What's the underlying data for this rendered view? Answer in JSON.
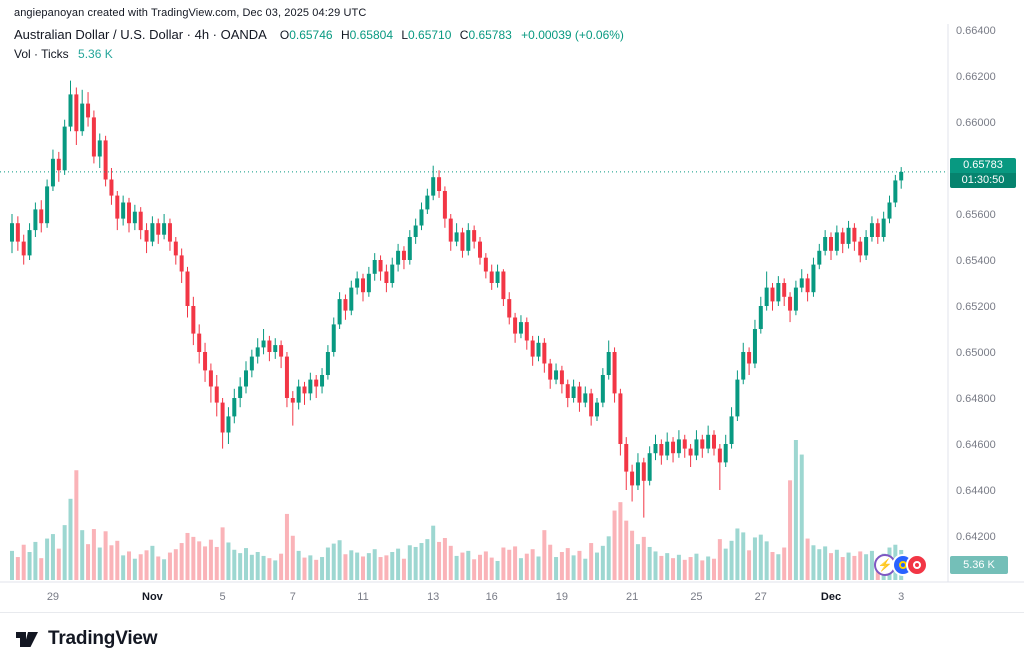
{
  "attribution": "angiepanoyan created with TradingView.com, Dec 03, 2025 04:29 UTC",
  "legend": {
    "title": "Australian Dollar / U.S. Dollar · 4h · OANDA",
    "ohlc": {
      "o_label": "O",
      "o": "0.65746",
      "h_label": "H",
      "h": "0.65804",
      "l_label": "L",
      "l": "0.65710",
      "c_label": "C",
      "c": "0.65783",
      "change": "+0.00039 (+0.06%)"
    },
    "volume_label": "Vol · Ticks",
    "volume_value": "5.36 K"
  },
  "price_axis": {
    "current_price": "0.65783",
    "countdown": "01:30:50"
  },
  "volume_axis": {
    "last_label": "5.36 K"
  },
  "footer": {
    "brand": "TradingView"
  },
  "icons": [
    "lightning-icon",
    "event-marker-blue-icon",
    "event-marker-red-icon"
  ],
  "colors": {
    "up": "#089981",
    "down": "#f23645",
    "vol_up": "rgba(38,166,154,0.45)",
    "vol_down": "rgba(242,54,69,0.38)",
    "axis_text": "#787b86",
    "month_text": "#131722",
    "separator": "#e0e3eb",
    "last_price_line": "#089981",
    "badge_price_bg": "#089981",
    "badge_vol_bg": "#74bfb8"
  },
  "chart_data": {
    "type": "candlestick+volume",
    "title": "Australian Dollar / U.S. Dollar",
    "timeframe": "4h",
    "exchange": "OANDA",
    "volume_units": "K ticks",
    "ylim": [
      0.642,
      0.664
    ],
    "grid": false,
    "last_price": 0.65783,
    "last_volume": 5.36,
    "y_ticks": [
      0.664,
      0.662,
      0.66,
      0.658,
      0.656,
      0.654,
      0.652,
      0.65,
      0.648,
      0.646,
      0.644,
      0.642
    ],
    "x_labels": [
      {
        "t": "29",
        "i": 7,
        "b": false
      },
      {
        "t": "Nov",
        "i": 24,
        "b": true
      },
      {
        "t": "5",
        "i": 36,
        "b": false
      },
      {
        "t": "7",
        "i": 48,
        "b": false
      },
      {
        "t": "11",
        "i": 60,
        "b": false
      },
      {
        "t": "13",
        "i": 72,
        "b": false
      },
      {
        "t": "16",
        "i": 82,
        "b": false
      },
      {
        "t": "19",
        "i": 94,
        "b": false
      },
      {
        "t": "21",
        "i": 106,
        "b": false
      },
      {
        "t": "25",
        "i": 117,
        "b": false
      },
      {
        "t": "27",
        "i": 128,
        "b": false
      },
      {
        "t": "Dec",
        "i": 140,
        "b": true
      },
      {
        "t": "3",
        "i": 152,
        "b": false
      }
    ],
    "candles": [
      [
        0.6548,
        0.656,
        0.6543,
        0.6556,
        5.2
      ],
      [
        0.6556,
        0.6559,
        0.6544,
        0.6548,
        4.1
      ],
      [
        0.6548,
        0.6551,
        0.6538,
        0.6542,
        6.3
      ],
      [
        0.6542,
        0.6556,
        0.654,
        0.6553,
        5
      ],
      [
        0.6553,
        0.6565,
        0.655,
        0.6562,
        6.8
      ],
      [
        0.6562,
        0.6566,
        0.6552,
        0.6556,
        3.9
      ],
      [
        0.6556,
        0.6575,
        0.6554,
        0.6572,
        7.4
      ],
      [
        0.6572,
        0.6588,
        0.657,
        0.6584,
        8.2
      ],
      [
        0.6584,
        0.6587,
        0.6574,
        0.6579,
        5.6
      ],
      [
        0.6579,
        0.6601,
        0.6577,
        0.6598,
        9.8
      ],
      [
        0.6598,
        0.6618,
        0.6596,
        0.6612,
        14.5
      ],
      [
        0.6612,
        0.6615,
        0.659,
        0.6596,
        19.6
      ],
      [
        0.6596,
        0.6614,
        0.6594,
        0.6608,
        8.9
      ],
      [
        0.6608,
        0.6613,
        0.6598,
        0.6602,
        6.4
      ],
      [
        0.6602,
        0.6605,
        0.6582,
        0.6585,
        9.1
      ],
      [
        0.6585,
        0.6595,
        0.658,
        0.6592,
        5.8
      ],
      [
        0.6592,
        0.6594,
        0.6572,
        0.6575,
        8.7
      ],
      [
        0.6575,
        0.658,
        0.6564,
        0.6568,
        6.2
      ],
      [
        0.6568,
        0.657,
        0.6553,
        0.6558,
        7
      ],
      [
        0.6558,
        0.6568,
        0.6555,
        0.6565,
        4.4
      ],
      [
        0.6565,
        0.6567,
        0.6552,
        0.6556,
        5.1
      ],
      [
        0.6556,
        0.6564,
        0.6553,
        0.6561,
        3.8
      ],
      [
        0.6561,
        0.6563,
        0.6549,
        0.6553,
        4.6
      ],
      [
        0.6553,
        0.6556,
        0.6543,
        0.6548,
        5.3
      ],
      [
        0.6548,
        0.6559,
        0.6546,
        0.6556,
        6.1
      ],
      [
        0.6556,
        0.6558,
        0.6547,
        0.6551,
        4.2
      ],
      [
        0.6551,
        0.656,
        0.6549,
        0.6556,
        3.7
      ],
      [
        0.6556,
        0.6558,
        0.6544,
        0.6548,
        4.9
      ],
      [
        0.6548,
        0.655,
        0.6538,
        0.6542,
        5.5
      ],
      [
        0.6542,
        0.6545,
        0.653,
        0.6535,
        6.6
      ],
      [
        0.6535,
        0.6537,
        0.6515,
        0.652,
        8.4
      ],
      [
        0.652,
        0.6524,
        0.6503,
        0.6508,
        7.7
      ],
      [
        0.6508,
        0.6512,
        0.6495,
        0.65,
        6.9
      ],
      [
        0.65,
        0.6504,
        0.6487,
        0.6492,
        6
      ],
      [
        0.6492,
        0.6495,
        0.6478,
        0.6485,
        7.2
      ],
      [
        0.6485,
        0.649,
        0.6472,
        0.6478,
        5.9
      ],
      [
        0.6478,
        0.648,
        0.6458,
        0.6465,
        9.4
      ],
      [
        0.6465,
        0.6476,
        0.646,
        0.6472,
        6.7
      ],
      [
        0.6472,
        0.6484,
        0.6469,
        0.648,
        5.4
      ],
      [
        0.648,
        0.6489,
        0.6476,
        0.6485,
        4.8
      ],
      [
        0.6485,
        0.6496,
        0.6482,
        0.6492,
        5.7
      ],
      [
        0.6492,
        0.6501,
        0.6489,
        0.6498,
        4.5
      ],
      [
        0.6498,
        0.6506,
        0.6495,
        0.6502,
        5
      ],
      [
        0.6502,
        0.651,
        0.6499,
        0.6505,
        4.3
      ],
      [
        0.6505,
        0.6507,
        0.6496,
        0.65,
        3.9
      ],
      [
        0.65,
        0.6506,
        0.6497,
        0.6503,
        3.5
      ],
      [
        0.6503,
        0.6505,
        0.6493,
        0.6498,
        4.7
      ],
      [
        0.6498,
        0.65,
        0.6476,
        0.648,
        11.8
      ],
      [
        0.648,
        0.6483,
        0.6468,
        0.6478,
        7.9
      ],
      [
        0.6478,
        0.6488,
        0.6475,
        0.6485,
        5.2
      ],
      [
        0.6485,
        0.6487,
        0.6477,
        0.6482,
        4
      ],
      [
        0.6482,
        0.6491,
        0.6479,
        0.6488,
        4.4
      ],
      [
        0.6488,
        0.649,
        0.648,
        0.6485,
        3.6
      ],
      [
        0.6485,
        0.6493,
        0.6482,
        0.649,
        4.1
      ],
      [
        0.649,
        0.6503,
        0.6488,
        0.65,
        5.8
      ],
      [
        0.65,
        0.6515,
        0.6498,
        0.6512,
        6.5
      ],
      [
        0.6512,
        0.6526,
        0.651,
        0.6523,
        7.1
      ],
      [
        0.6523,
        0.6525,
        0.6514,
        0.6518,
        4.6
      ],
      [
        0.6518,
        0.6531,
        0.6516,
        0.6528,
        5.3
      ],
      [
        0.6528,
        0.6535,
        0.6525,
        0.6532,
        4.9
      ],
      [
        0.6532,
        0.6534,
        0.6522,
        0.6526,
        4.2
      ],
      [
        0.6526,
        0.6537,
        0.6524,
        0.6534,
        4.8
      ],
      [
        0.6534,
        0.6543,
        0.6531,
        0.654,
        5.5
      ],
      [
        0.654,
        0.6542,
        0.6531,
        0.6535,
        4.1
      ],
      [
        0.6535,
        0.6538,
        0.6526,
        0.653,
        4.4
      ],
      [
        0.653,
        0.6541,
        0.6528,
        0.6538,
        5
      ],
      [
        0.6538,
        0.6547,
        0.6535,
        0.6544,
        5.6
      ],
      [
        0.6544,
        0.6546,
        0.6536,
        0.654,
        3.8
      ],
      [
        0.654,
        0.6553,
        0.6538,
        0.655,
        6.2
      ],
      [
        0.655,
        0.6558,
        0.6547,
        0.6555,
        5.9
      ],
      [
        0.6555,
        0.6565,
        0.6553,
        0.6562,
        6.6
      ],
      [
        0.6562,
        0.6571,
        0.656,
        0.6568,
        7.3
      ],
      [
        0.6568,
        0.6581,
        0.6566,
        0.6576,
        9.7
      ],
      [
        0.6576,
        0.6579,
        0.6567,
        0.657,
        6.8
      ],
      [
        0.657,
        0.6572,
        0.6554,
        0.6558,
        7.5
      ],
      [
        0.6558,
        0.656,
        0.6544,
        0.6548,
        6.1
      ],
      [
        0.6548,
        0.6556,
        0.6546,
        0.6552,
        4.3
      ],
      [
        0.6552,
        0.6554,
        0.6541,
        0.6544,
        4.9
      ],
      [
        0.6544,
        0.6556,
        0.6542,
        0.6553,
        5.2
      ],
      [
        0.6553,
        0.6555,
        0.6545,
        0.6548,
        3.7
      ],
      [
        0.6548,
        0.655,
        0.6538,
        0.6541,
        4.5
      ],
      [
        0.6541,
        0.6543,
        0.6532,
        0.6535,
        5.1
      ],
      [
        0.6535,
        0.6538,
        0.6527,
        0.653,
        4
      ],
      [
        0.653,
        0.6538,
        0.6528,
        0.6535,
        3.4
      ],
      [
        0.6535,
        0.6536,
        0.652,
        0.6523,
        5.8
      ],
      [
        0.6523,
        0.6526,
        0.6512,
        0.6515,
        5.4
      ],
      [
        0.6515,
        0.6517,
        0.6504,
        0.6508,
        6
      ],
      [
        0.6508,
        0.6516,
        0.6506,
        0.6513,
        3.9
      ],
      [
        0.6513,
        0.6515,
        0.6501,
        0.6505,
        4.7
      ],
      [
        0.6505,
        0.6507,
        0.6494,
        0.6498,
        5.5
      ],
      [
        0.6498,
        0.6507,
        0.6496,
        0.6504,
        4.2
      ],
      [
        0.6504,
        0.6506,
        0.6491,
        0.6495,
        8.9
      ],
      [
        0.6495,
        0.6497,
        0.6484,
        0.6488,
        6.3
      ],
      [
        0.6488,
        0.6495,
        0.6486,
        0.6492,
        4.1
      ],
      [
        0.6492,
        0.6494,
        0.6482,
        0.6486,
        5
      ],
      [
        0.6486,
        0.6488,
        0.6476,
        0.648,
        5.7
      ],
      [
        0.648,
        0.6488,
        0.6478,
        0.6485,
        4.4
      ],
      [
        0.6485,
        0.6487,
        0.6474,
        0.6478,
        5.2
      ],
      [
        0.6478,
        0.6485,
        0.6476,
        0.6482,
        3.8
      ],
      [
        0.6482,
        0.6484,
        0.6468,
        0.6472,
        6.6
      ],
      [
        0.6472,
        0.648,
        0.647,
        0.6478,
        4.9
      ],
      [
        0.6478,
        0.6493,
        0.6476,
        0.649,
        6.1
      ],
      [
        0.649,
        0.6505,
        0.6488,
        0.65,
        7.8
      ],
      [
        0.65,
        0.6502,
        0.6478,
        0.6482,
        12.4
      ],
      [
        0.6482,
        0.6484,
        0.6455,
        0.646,
        13.9
      ],
      [
        0.646,
        0.6463,
        0.644,
        0.6448,
        10.6
      ],
      [
        0.6448,
        0.6451,
        0.6435,
        0.6442,
        8.8
      ],
      [
        0.6442,
        0.6456,
        0.644,
        0.6452,
        6.4
      ],
      [
        0.6452,
        0.6454,
        0.6428,
        0.6444,
        7.7
      ],
      [
        0.6444,
        0.6459,
        0.6442,
        0.6456,
        5.9
      ],
      [
        0.6456,
        0.6464,
        0.6453,
        0.646,
        5.1
      ],
      [
        0.646,
        0.6462,
        0.6451,
        0.6455,
        4.3
      ],
      [
        0.6455,
        0.6465,
        0.6453,
        0.6461,
        4.8
      ],
      [
        0.6461,
        0.6463,
        0.6452,
        0.6456,
        3.9
      ],
      [
        0.6456,
        0.6466,
        0.6454,
        0.6462,
        4.5
      ],
      [
        0.6462,
        0.6464,
        0.6454,
        0.6458,
        3.6
      ],
      [
        0.6458,
        0.646,
        0.645,
        0.6455,
        4.1
      ],
      [
        0.6455,
        0.6466,
        0.6453,
        0.6462,
        4.7
      ],
      [
        0.6462,
        0.6464,
        0.6454,
        0.6458,
        3.5
      ],
      [
        0.6458,
        0.6468,
        0.6456,
        0.6464,
        4.2
      ],
      [
        0.6464,
        0.6466,
        0.6455,
        0.6458,
        3.8
      ],
      [
        0.6458,
        0.646,
        0.644,
        0.6452,
        7.3
      ],
      [
        0.6452,
        0.6464,
        0.645,
        0.646,
        5.6
      ],
      [
        0.646,
        0.6476,
        0.6458,
        0.6472,
        7
      ],
      [
        0.6472,
        0.6492,
        0.647,
        0.6488,
        9.2
      ],
      [
        0.6488,
        0.6504,
        0.6486,
        0.65,
        8.5
      ],
      [
        0.65,
        0.6502,
        0.649,
        0.6495,
        5.3
      ],
      [
        0.6495,
        0.6514,
        0.6493,
        0.651,
        7.6
      ],
      [
        0.651,
        0.6524,
        0.6508,
        0.652,
        8.1
      ],
      [
        0.652,
        0.6535,
        0.6518,
        0.6528,
        6.9
      ],
      [
        0.6528,
        0.653,
        0.6518,
        0.6522,
        5
      ],
      [
        0.6522,
        0.6533,
        0.652,
        0.653,
        4.6
      ],
      [
        0.653,
        0.6532,
        0.652,
        0.6524,
        5.8
      ],
      [
        0.6524,
        0.6526,
        0.6513,
        0.6518,
        17.8
      ],
      [
        0.6518,
        0.6531,
        0.6516,
        0.6528,
        25
      ],
      [
        0.6528,
        0.6536,
        0.6526,
        0.6532,
        22.4
      ],
      [
        0.6532,
        0.6534,
        0.6522,
        0.6526,
        7.4
      ],
      [
        0.6526,
        0.6541,
        0.6524,
        0.6538,
        6.2
      ],
      [
        0.6538,
        0.6547,
        0.6536,
        0.6544,
        5.5
      ],
      [
        0.6544,
        0.6553,
        0.6542,
        0.655,
        6
      ],
      [
        0.655,
        0.6552,
        0.654,
        0.6544,
        4.8
      ],
      [
        0.6544,
        0.6555,
        0.6542,
        0.6552,
        5.4
      ],
      [
        0.6552,
        0.6554,
        0.6543,
        0.6547,
        4.1
      ],
      [
        0.6547,
        0.6557,
        0.6545,
        0.6554,
        4.9
      ],
      [
        0.6554,
        0.6556,
        0.6544,
        0.6548,
        4.3
      ],
      [
        0.6548,
        0.655,
        0.6539,
        0.6542,
        5.1
      ],
      [
        0.6542,
        0.6553,
        0.654,
        0.655,
        4.6
      ],
      [
        0.655,
        0.6559,
        0.6548,
        0.6556,
        5.2
      ],
      [
        0.6556,
        0.6558,
        0.6547,
        0.655,
        3.9
      ],
      [
        0.655,
        0.6561,
        0.6548,
        0.6558,
        4.7
      ],
      [
        0.6558,
        0.6568,
        0.6556,
        0.6565,
        5.8
      ],
      [
        0.6565,
        0.6577,
        0.6563,
        0.65746,
        6.3
      ],
      [
        0.65746,
        0.65804,
        0.6571,
        0.65783,
        5.36
      ]
    ]
  }
}
